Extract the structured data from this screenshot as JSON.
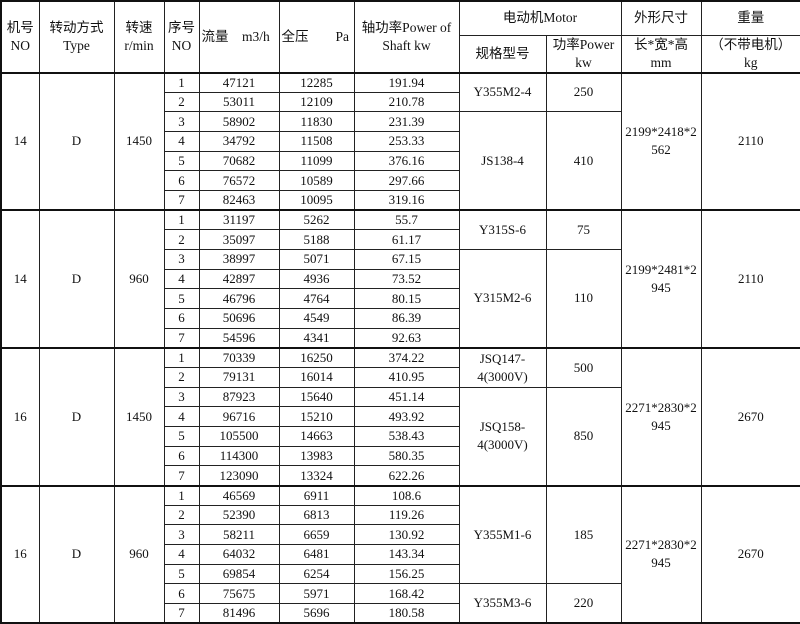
{
  "header": {
    "no": [
      "机号",
      "NO"
    ],
    "type": [
      "转动方式",
      "Type"
    ],
    "speed": [
      "转速",
      "r/min"
    ],
    "seq": [
      "序号",
      "NO"
    ],
    "flow": "流量　m3/h",
    "pressure": "全压　　Pa",
    "shaft_power": [
      "轴功率Power of",
      "Shaft  kw"
    ],
    "motor": "电动机Motor",
    "motor_model": "规格型号",
    "motor_power": [
      "功率Power",
      "kw"
    ],
    "dims": "外形尺寸",
    "dims_unit": [
      "长*宽*高",
      "mm"
    ],
    "weight": "重量",
    "weight_unit": [
      "（不带电机）",
      "kg"
    ]
  },
  "groups": [
    {
      "no": "14",
      "type": "D",
      "speed": "1450",
      "dims": [
        "2199*2418*2",
        "562"
      ],
      "weight": "2110",
      "rows": [
        [
          "1",
          "47121",
          "12285",
          "191.94"
        ],
        [
          "2",
          "53011",
          "12109",
          "210.78"
        ],
        [
          "3",
          "58902",
          "11830",
          "231.39"
        ],
        [
          "4",
          "34792",
          "11508",
          "253.33"
        ],
        [
          "5",
          "70682",
          "11099",
          "376.16"
        ],
        [
          "6",
          "76572",
          "10589",
          "297.66"
        ],
        [
          "7",
          "82463",
          "10095",
          "319.16"
        ]
      ],
      "motors": [
        {
          "model": [
            "Y355M2-4"
          ],
          "power": "250",
          "rows": 2
        },
        {
          "model": [
            "JS138-4"
          ],
          "power": "410",
          "rows": 5
        }
      ]
    },
    {
      "no": "14",
      "type": "D",
      "speed": "960",
      "dims": [
        "2199*2481*2",
        "945"
      ],
      "weight": "2110",
      "rows": [
        [
          "1",
          "31197",
          "5262",
          "55.7"
        ],
        [
          "2",
          "35097",
          "5188",
          "61.17"
        ],
        [
          "3",
          "38997",
          "5071",
          "67.15"
        ],
        [
          "4",
          "42897",
          "4936",
          "73.52"
        ],
        [
          "5",
          "46796",
          "4764",
          "80.15"
        ],
        [
          "6",
          "50696",
          "4549",
          "86.39"
        ],
        [
          "7",
          "54596",
          "4341",
          "92.63"
        ]
      ],
      "motors": [
        {
          "model": [
            "Y315S-6"
          ],
          "power": "75",
          "rows": 2
        },
        {
          "model": [
            "Y315M2-6"
          ],
          "power": "110",
          "rows": 5
        }
      ]
    },
    {
      "no": "16",
      "type": "D",
      "speed": "1450",
      "dims": [
        "2271*2830*2",
        "945"
      ],
      "weight": "2670",
      "rows": [
        [
          "1",
          "70339",
          "16250",
          "374.22"
        ],
        [
          "2",
          "79131",
          "16014",
          "410.95"
        ],
        [
          "3",
          "87923",
          "15640",
          "451.14"
        ],
        [
          "4",
          "96716",
          "15210",
          "493.92"
        ],
        [
          "5",
          "105500",
          "14663",
          "538.43"
        ],
        [
          "6",
          "114300",
          "13983",
          "580.35"
        ],
        [
          "7",
          "123090",
          "13324",
          "622.26"
        ]
      ],
      "motors": [
        {
          "model": [
            "JSQ147-",
            "4(3000V)"
          ],
          "power": "500",
          "rows": 2
        },
        {
          "model": [
            "JSQ158-",
            "4(3000V)"
          ],
          "power": "850",
          "rows": 5
        }
      ]
    },
    {
      "no": "16",
      "type": "D",
      "speed": "960",
      "dims": [
        "2271*2830*2",
        "945"
      ],
      "weight": "2670",
      "rows": [
        [
          "1",
          "46569",
          "6911",
          "108.6"
        ],
        [
          "2",
          "52390",
          "6813",
          "119.26"
        ],
        [
          "3",
          "58211",
          "6659",
          "130.92"
        ],
        [
          "4",
          "64032",
          "6481",
          "143.34"
        ],
        [
          "5",
          "69854",
          "6254",
          "156.25"
        ],
        [
          "6",
          "75675",
          "5971",
          "168.42"
        ],
        [
          "7",
          "81496",
          "5696",
          "180.58"
        ]
      ],
      "motors": [
        {
          "model": [
            "Y355M1-6"
          ],
          "power": "185",
          "rows": 5
        },
        {
          "model": [
            "Y355M3-6"
          ],
          "power": "220",
          "rows": 2
        }
      ]
    }
  ]
}
